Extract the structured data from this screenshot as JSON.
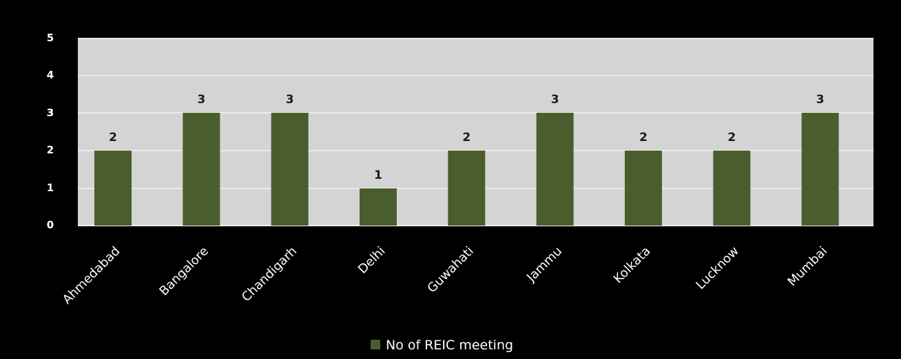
{
  "chart_data": {
    "type": "bar",
    "categories": [
      "Ahmedabad",
      "Bangalore",
      "Chandigarh",
      "Delhi",
      "Guwahati",
      "Jammu",
      "Kolkata",
      "Lucknow",
      "Mumbai"
    ],
    "series": [
      {
        "name": "No of REIC meeting",
        "values": [
          2,
          3,
          3,
          1,
          2,
          3,
          2,
          2,
          3
        ],
        "color": "#4a5e2d"
      }
    ],
    "y_tick_labels": [
      "0",
      "1",
      "2",
      "3",
      "3",
      "4",
      "5"
    ],
    "data_labels": true,
    "grid": true,
    "legend_position": "bottom",
    "plot_background": "#d4d4d4",
    "page_background": "#000000",
    "gridline_color": "#ececec"
  }
}
